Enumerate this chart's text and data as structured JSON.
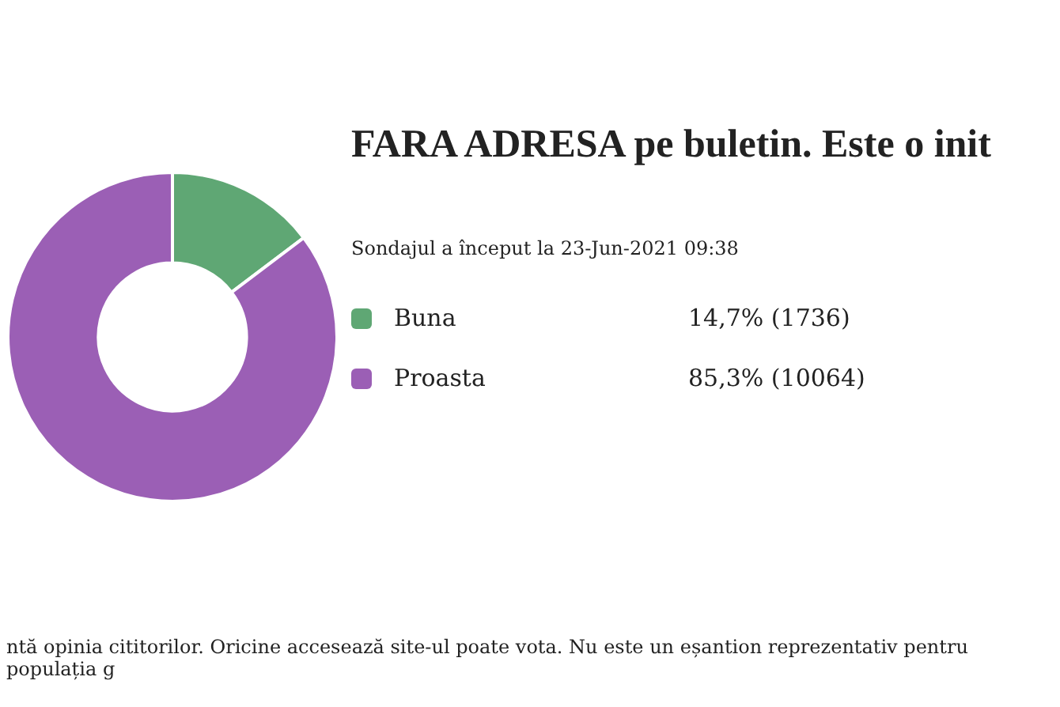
{
  "chart_data": {
    "type": "donut",
    "title": "FARA ADRESA pe buletin. Este o init",
    "subtitle": "Sondajul a început la 23-Jun-2021 09:38",
    "categories": [
      "Buna",
      "Proasta"
    ],
    "values": [
      1736,
      10064
    ],
    "value_labels": [
      "14,7% (1736)",
      "85,3% (10064)"
    ],
    "colors": [
      "#5fa774",
      "#9b5fb5"
    ],
    "legend": "right",
    "annotations": [
      "ntă opinia cititorilor. Oricine accesează site-ul poate vota. Nu este un eșantion reprezentativ pentru populația g"
    ]
  }
}
